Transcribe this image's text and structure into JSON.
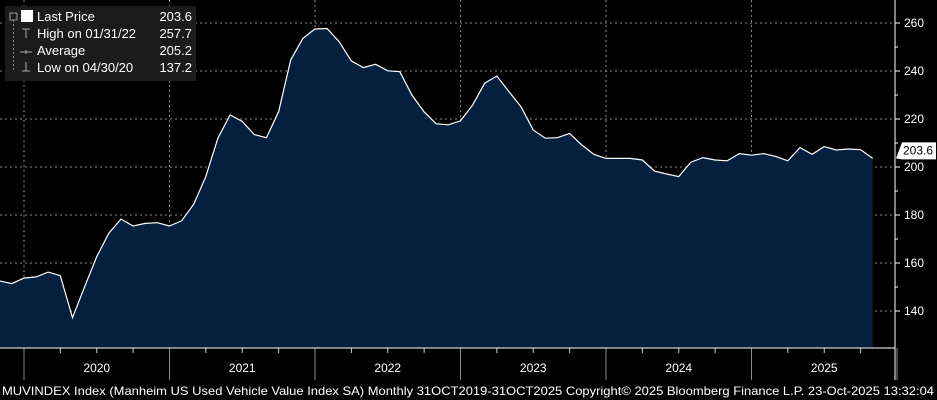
{
  "legend": {
    "items": [
      {
        "label": "Last Price",
        "value": "203.6",
        "icon": "filled-square-icon"
      },
      {
        "label": "High on 01/31/22",
        "value": "257.7",
        "icon": "high-marker-icon"
      },
      {
        "label": "Average",
        "value": "205.2",
        "icon": "average-marker-icon"
      },
      {
        "label": "Low on 04/30/20",
        "value": "137.2",
        "icon": "low-marker-icon"
      }
    ],
    "collapse_icon": "minus-box-icon"
  },
  "last_price_tag": "203.6",
  "footer": "MUVINDEX Index (Manheim US Used Vehicle Value Index SA) Monthly 31OCT2019-31OCT2025 Copyright© 2025 Bloomberg Finance L.P. 23-Oct-2025 13:32:04",
  "colors": {
    "background": "#000000",
    "area_fill": "#04203e",
    "line": "#ffffff",
    "grid": "#8a8a8a",
    "legend_bg": "#1c1c1c"
  },
  "chart_data": {
    "type": "area",
    "ylim": [
      125,
      270
    ],
    "yticks": [
      140,
      160,
      180,
      200,
      220,
      240,
      260
    ],
    "xticks": [
      "2020",
      "2021",
      "2022",
      "2023",
      "2024",
      "2025"
    ],
    "grid": true,
    "legend_position": "top-left",
    "y_axis_position": "right",
    "x_start": "2019-10",
    "x_end": "2025-10",
    "frequency": "monthly",
    "values": [
      152.5,
      151.4,
      153.7,
      154.2,
      156.2,
      154.7,
      137.2,
      150.1,
      162.6,
      172.4,
      178.3,
      175.4,
      176.5,
      176.8,
      175.4,
      177.6,
      184.5,
      196.0,
      212.0,
      221.7,
      219.0,
      213.5,
      212.2,
      223.0,
      244.6,
      253.6,
      257.5,
      257.7,
      252.2,
      244.2,
      241.4,
      242.8,
      240.1,
      239.7,
      230.0,
      223.0,
      218.0,
      217.6,
      219.2,
      225.8,
      234.9,
      237.9,
      231.4,
      225.1,
      215.4,
      212.0,
      212.2,
      214.0,
      209.2,
      205.3,
      203.6,
      203.6,
      203.6,
      202.9,
      198.3,
      197.1,
      196.0,
      202.0,
      203.9,
      202.9,
      202.6,
      205.6,
      204.9,
      205.6,
      204.4,
      202.6,
      208.1,
      205.3,
      208.5,
      207.1,
      207.5,
      207.2,
      203.6
    ]
  }
}
